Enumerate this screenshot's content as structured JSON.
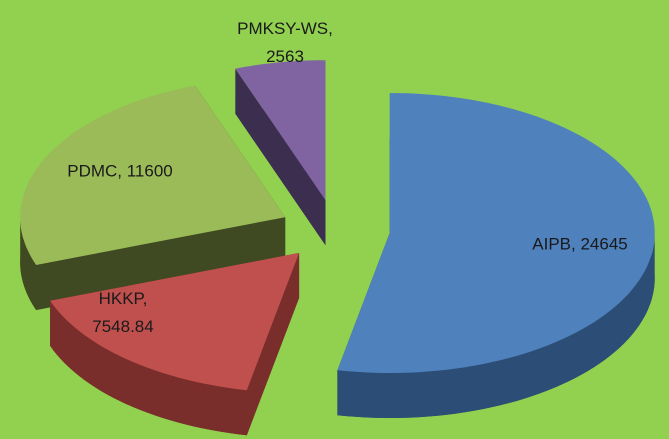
{
  "chart_data": {
    "type": "pie",
    "categories": [
      "AIPB",
      "HKKP",
      "PDMC",
      "PMKSY-WS"
    ],
    "values": [
      24645,
      7548.84,
      11600,
      2563
    ],
    "value_labels": [
      "AIPB, 24645",
      "HKKP, 7548.84",
      "PDMC, 11600",
      "PMKSY-WS, 2563"
    ],
    "colors": [
      "#4f81bd",
      "#c0504d",
      "#9bbb59",
      "#8064a2"
    ],
    "side_colors": [
      "#2c4d75",
      "#7a2e2c",
      "#3f4a22",
      "#3b2e4f"
    ],
    "background": "#92d050",
    "exploded": true,
    "three_d": true
  }
}
